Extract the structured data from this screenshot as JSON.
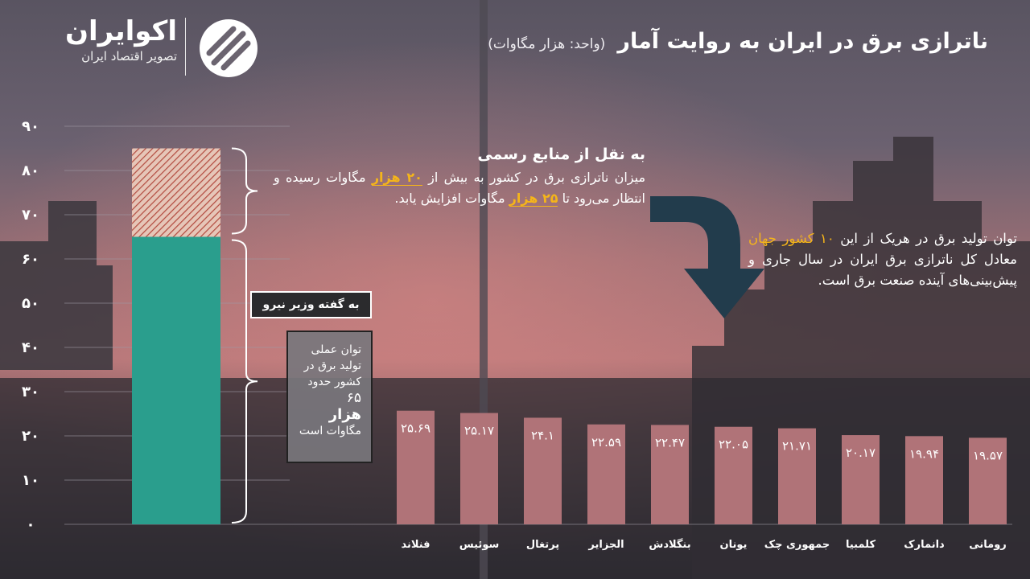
{
  "brand": {
    "name": "اکوایران",
    "tagline": "تصویر اقتصاد ایران"
  },
  "header": {
    "title": "ناترازی برق در ایران به روایت آمار",
    "unit": "(واحد: هزار مگاوات)"
  },
  "official_note": {
    "heading": "به نقل از منابع رسمی",
    "text_1": "میزان ناترازی برق در کشور به بیش از",
    "highlight_1": "۲۰ هزار",
    "text_2": "مگاوات رسیده و انتظار می‌رود تا",
    "highlight_2": "۲۵ هزار",
    "text_3": "مگاوات افزایش یابد."
  },
  "minister_label": "به گفته وزیر نیرو",
  "actual_note": {
    "text_1": "توان عملی تولید برق در کشور حدود",
    "value": "۶۵",
    "unit_big": "هزار",
    "text_2": "مگاوات است"
  },
  "right_note": {
    "text_1": "توان تولید برق در هریک از این",
    "highlight": "۱۰ کشور جهان",
    "text_2": "معادل کل ناترازی برق ایران در سال جاری و پیش‌بینی‌های آینده صنعت برق است."
  },
  "colors": {
    "iran_capacity": "#2a9e8d",
    "country_bars": "#b07378",
    "hatch": "#b24a3e",
    "arrow": "#223c4c"
  },
  "chart_data": {
    "type": "bar",
    "yticks": [
      "۰",
      "۱۰",
      "۲۰",
      "۳۰",
      "۴۰",
      "۵۰",
      "۶۰",
      "۷۰",
      "۸۰",
      "۹۰"
    ],
    "ylim": [
      0,
      90
    ],
    "grid": true,
    "iran_stack": {
      "base_value": 65,
      "extra_value": 20
    },
    "categories": [
      "فنلاند",
      "سوئیس",
      "پرتغال",
      "الجزایر",
      "بنگلادش",
      "یونان",
      "جمهوری چک",
      "کلمبیا",
      "دانمارک",
      "رومانی"
    ],
    "values": [
      25.69,
      25.17,
      24.1,
      22.59,
      22.47,
      22.05,
      21.71,
      20.17,
      19.94,
      19.57
    ],
    "value_labels": [
      "۲۵.۶۹",
      "۲۵.۱۷",
      "۲۴.۱",
      "۲۲.۵۹",
      "۲۲.۴۷",
      "۲۲.۰۵",
      "۲۱.۷۱",
      "۲۰.۱۷",
      "۱۹.۹۴",
      "۱۹.۵۷"
    ]
  }
}
